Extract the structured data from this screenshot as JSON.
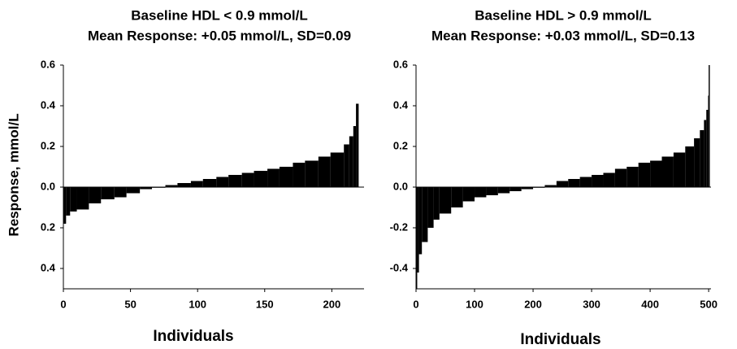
{
  "chart_data": [
    {
      "type": "bar",
      "title": "Baseline HDL < 0.9 mmol/L",
      "subtitle": "Mean Response: +0.05 mmol/L, SD=0.09",
      "x_label": "Individuals",
      "y_label": "Response, mmol/L",
      "color": "#000000",
      "x": [
        0,
        2,
        5,
        10,
        19,
        28,
        38,
        47,
        57,
        66,
        76,
        85,
        95,
        104,
        114,
        123,
        133,
        142,
        152,
        161,
        171,
        180,
        190,
        199,
        209,
        213,
        216,
        218
      ],
      "values": [
        -0.18,
        -0.14,
        -0.12,
        -0.11,
        -0.08,
        -0.06,
        -0.05,
        -0.03,
        -0.01,
        0.0,
        0.01,
        0.02,
        0.03,
        0.04,
        0.05,
        0.06,
        0.07,
        0.08,
        0.09,
        0.1,
        0.12,
        0.13,
        0.15,
        0.17,
        0.21,
        0.25,
        0.3,
        0.41
      ],
      "xlim": [
        0,
        224
      ],
      "xticks": [
        0,
        50,
        100,
        150,
        200
      ],
      "ylim": [
        -0.5,
        0.6
      ],
      "yticks": [
        0.6,
        0.4,
        0.2,
        {
          "value": 0,
          "label": "0.0"
        },
        {
          "value": -0.2,
          "label": "0.2"
        },
        {
          "value": -0.4,
          "label": "0.4"
        }
      ]
    },
    {
      "type": "bar",
      "title": "Baseline HDL > 0.9 mmol/L",
      "subtitle": "Mean Response: +0.03 mmol/L, SD=0.13",
      "x_label": "Individuals",
      "color": "#000000",
      "x": [
        0,
        2,
        5,
        10,
        20,
        30,
        40,
        60,
        80,
        100,
        120,
        140,
        160,
        180,
        200,
        220,
        240,
        260,
        280,
        300,
        320,
        340,
        360,
        380,
        400,
        420,
        440,
        460,
        475,
        485,
        492,
        496,
        499,
        500
      ],
      "values": [
        -0.5,
        -0.42,
        -0.33,
        -0.27,
        -0.2,
        -0.16,
        -0.13,
        -0.1,
        -0.07,
        -0.05,
        -0.04,
        -0.03,
        -0.02,
        -0.01,
        0.0,
        0.01,
        0.03,
        0.04,
        0.05,
        0.06,
        0.07,
        0.09,
        0.1,
        0.12,
        0.13,
        0.15,
        0.17,
        0.2,
        0.24,
        0.28,
        0.33,
        0.38,
        0.45,
        0.6
      ],
      "xlim": [
        0,
        504
      ],
      "xticks": [
        0,
        100,
        200,
        300,
        400,
        500
      ],
      "ylim": [
        -0.5,
        0.6
      ],
      "yticks": [
        0.6,
        0.4,
        0.2,
        {
          "value": 0,
          "label": "0.0"
        },
        -0.2,
        -0.4
      ]
    }
  ]
}
